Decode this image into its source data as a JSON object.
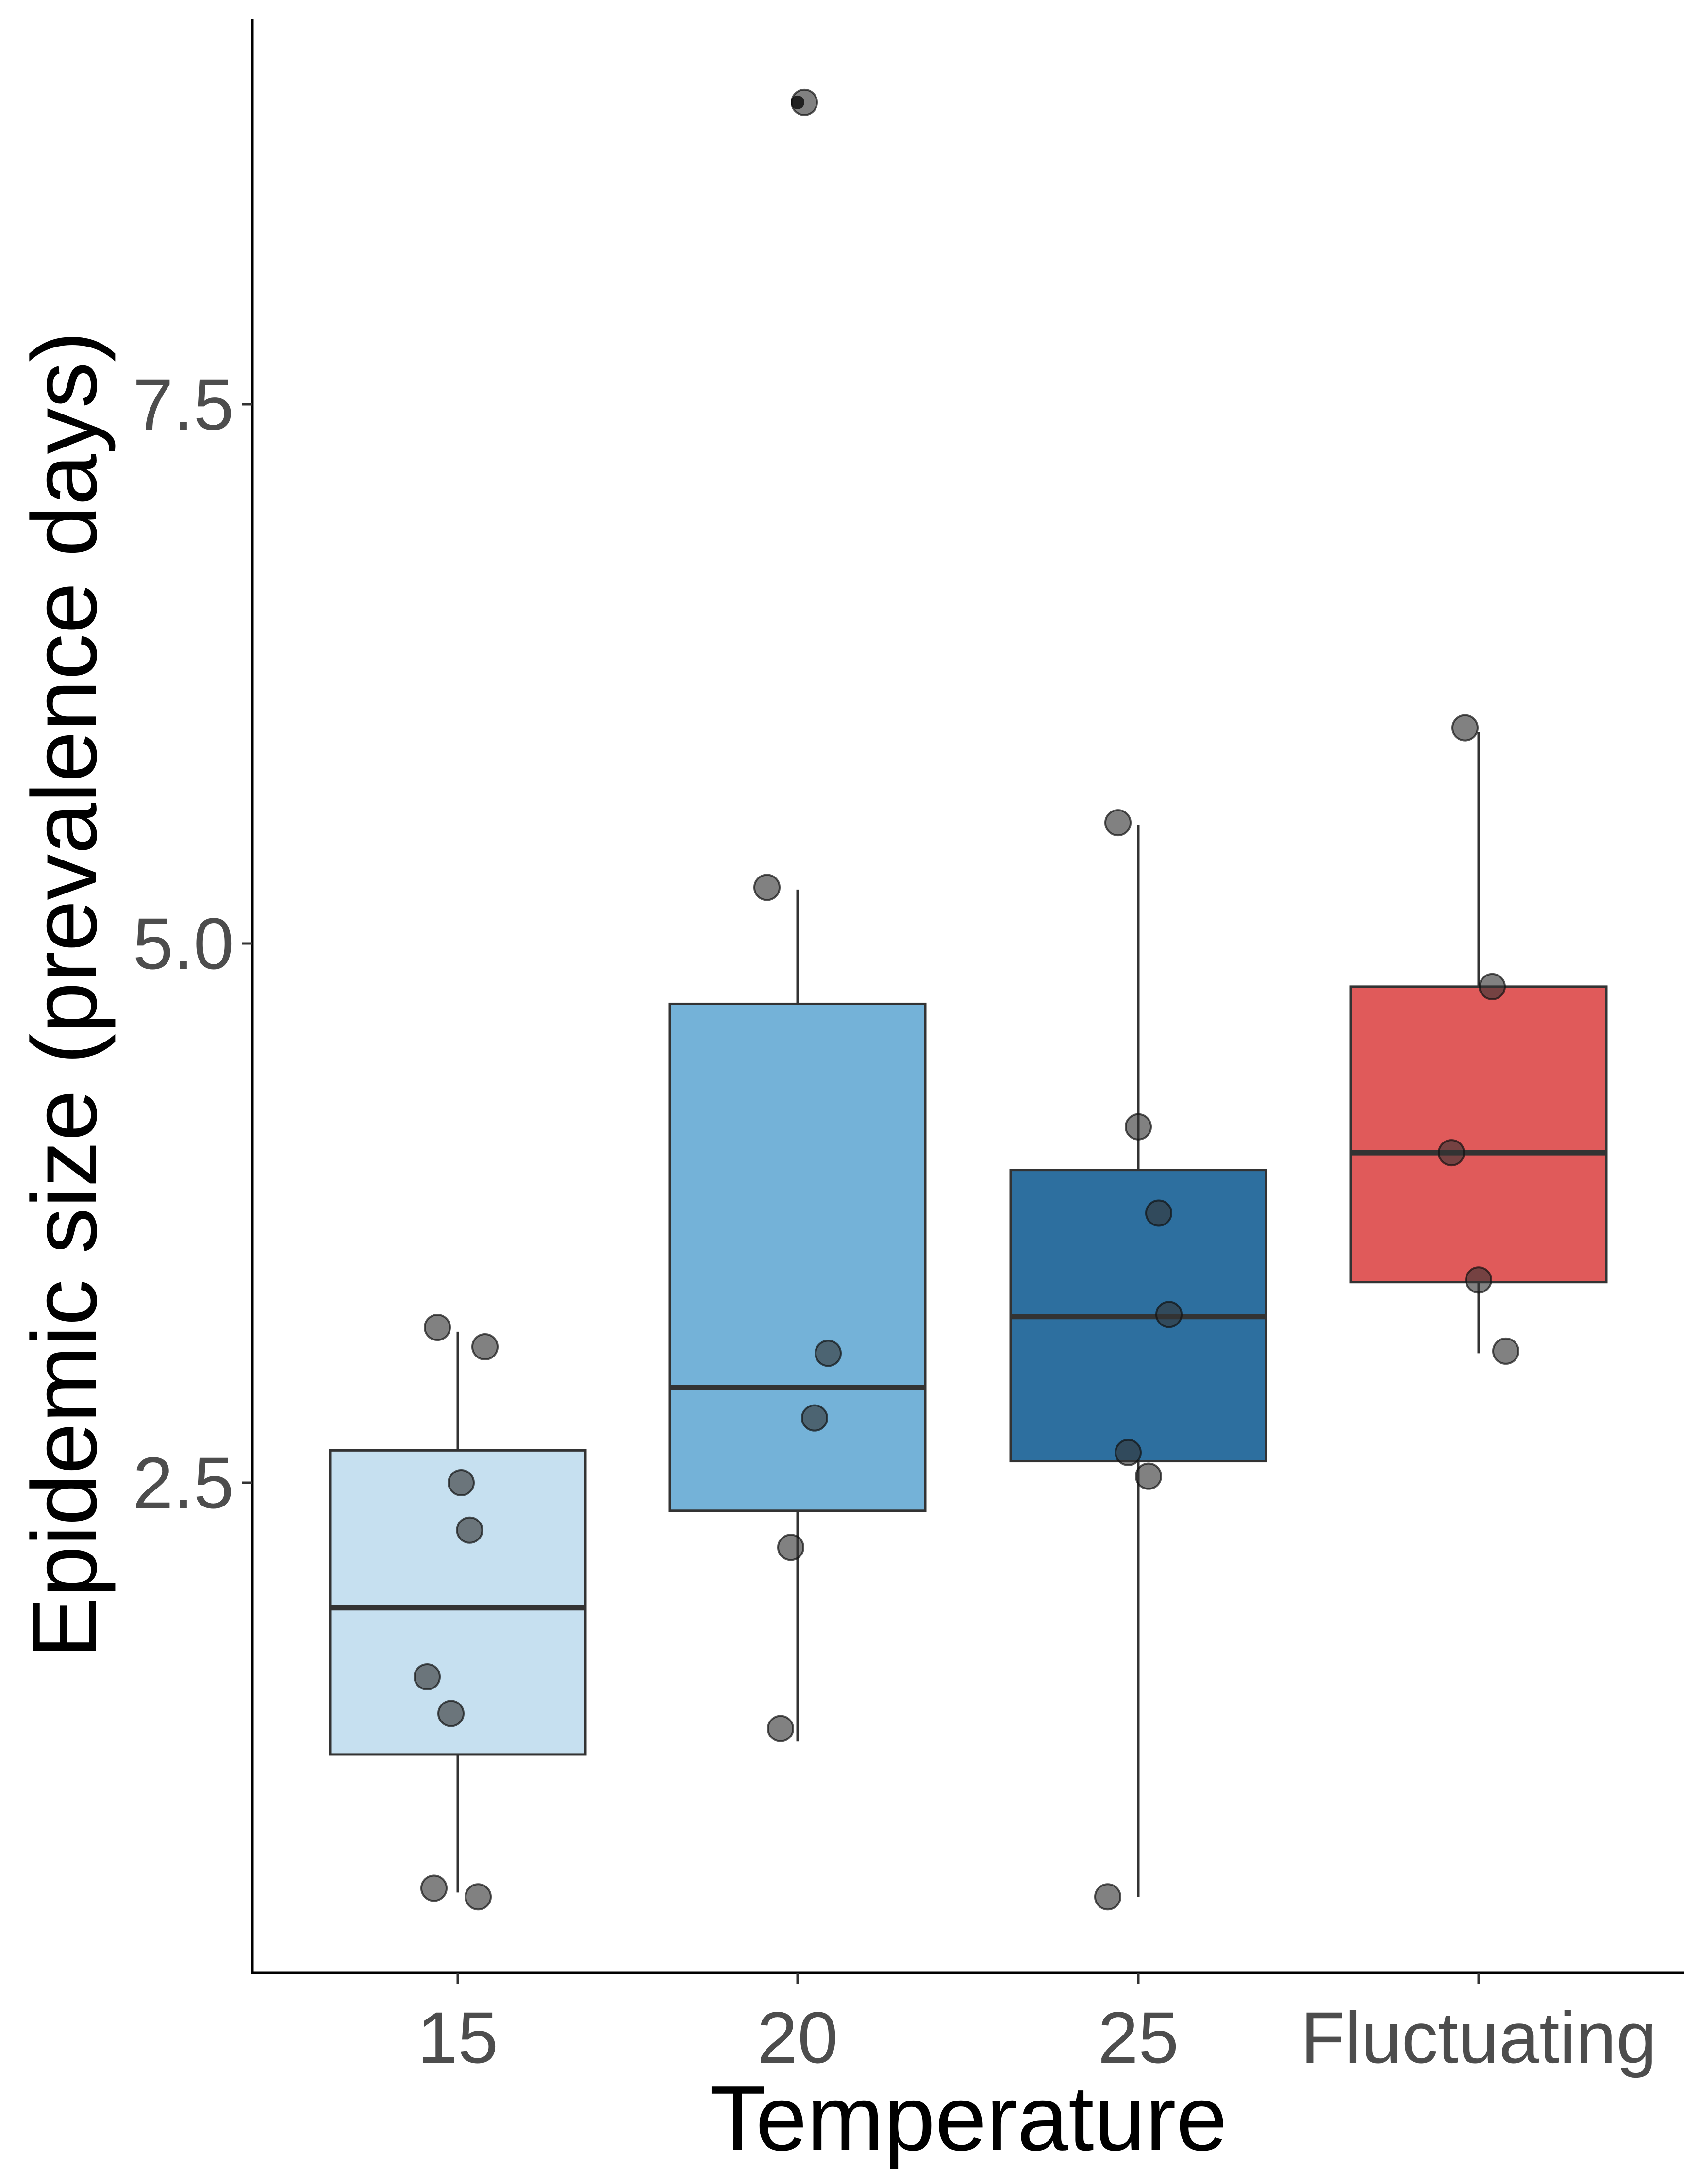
{
  "chart_data": {
    "type": "boxplot",
    "xlabel": "Temperature",
    "ylabel": "Epidemic size (prevalence days)",
    "ylim": [
      0.25,
      9.3
    ],
    "yticks": [
      2.5,
      5.0,
      7.5
    ],
    "ytick_labels": [
      "2.5",
      "5.0",
      "7.5"
    ],
    "grid": false,
    "legend": "none",
    "categories": [
      "15",
      "20",
      "25",
      "Fluctuating"
    ],
    "boxes": [
      {
        "category": "15",
        "fill": "#c6e0f0",
        "whisker_low": 0.6,
        "q1": 1.24,
        "median": 1.92,
        "q3": 2.65,
        "whisker_high": 3.2
      },
      {
        "category": "20",
        "fill": "#74b2d8",
        "whisker_low": 1.3,
        "q1": 2.37,
        "median": 2.94,
        "q3": 4.72,
        "whisker_high": 5.25
      },
      {
        "category": "25",
        "fill": "#2d6f9f",
        "whisker_low": 0.58,
        "q1": 2.6,
        "median": 3.27,
        "q3": 3.95,
        "whisker_high": 5.55
      },
      {
        "category": "Fluctuating",
        "fill": "#e05a5a",
        "whisker_low": 3.1,
        "q1": 3.43,
        "median": 4.03,
        "q3": 4.8,
        "whisker_high": 5.98
      }
    ],
    "outliers": [
      {
        "category": "20",
        "y": 8.9
      }
    ],
    "points": [
      {
        "category": "15",
        "x_offset": -0.06,
        "y": 3.22
      },
      {
        "category": "15",
        "x_offset": 0.08,
        "y": 3.13
      },
      {
        "category": "15",
        "x_offset": 0.01,
        "y": 2.5
      },
      {
        "category": "15",
        "x_offset": 0.035,
        "y": 2.28
      },
      {
        "category": "15",
        "x_offset": -0.09,
        "y": 1.6
      },
      {
        "category": "15",
        "x_offset": -0.02,
        "y": 1.43
      },
      {
        "category": "15",
        "x_offset": -0.07,
        "y": 0.62
      },
      {
        "category": "15",
        "x_offset": 0.06,
        "y": 0.58
      },
      {
        "category": "20",
        "x_offset": 0.02,
        "y": 8.9
      },
      {
        "category": "20",
        "x_offset": -0.09,
        "y": 5.26
      },
      {
        "category": "20",
        "x_offset": 0.09,
        "y": 3.1
      },
      {
        "category": "20",
        "x_offset": 0.05,
        "y": 2.8
      },
      {
        "category": "20",
        "x_offset": -0.02,
        "y": 2.2
      },
      {
        "category": "20",
        "x_offset": -0.05,
        "y": 1.36
      },
      {
        "category": "25",
        "x_offset": -0.06,
        "y": 5.56
      },
      {
        "category": "25",
        "x_offset": 0.0,
        "y": 4.15
      },
      {
        "category": "25",
        "x_offset": 0.06,
        "y": 3.75
      },
      {
        "category": "25",
        "x_offset": 0.09,
        "y": 3.28
      },
      {
        "category": "25",
        "x_offset": -0.03,
        "y": 2.64
      },
      {
        "category": "25",
        "x_offset": 0.03,
        "y": 2.53
      },
      {
        "category": "25",
        "x_offset": -0.09,
        "y": 0.58
      },
      {
        "category": "Fluctuating",
        "x_offset": -0.04,
        "y": 6.0
      },
      {
        "category": "Fluctuating",
        "x_offset": 0.04,
        "y": 4.8
      },
      {
        "category": "Fluctuating",
        "x_offset": -0.08,
        "y": 4.03
      },
      {
        "category": "Fluctuating",
        "x_offset": 0.0,
        "y": 3.44
      },
      {
        "category": "Fluctuating",
        "x_offset": 0.08,
        "y": 3.11
      }
    ],
    "point_color": "#333333",
    "line_color": "#333333"
  }
}
